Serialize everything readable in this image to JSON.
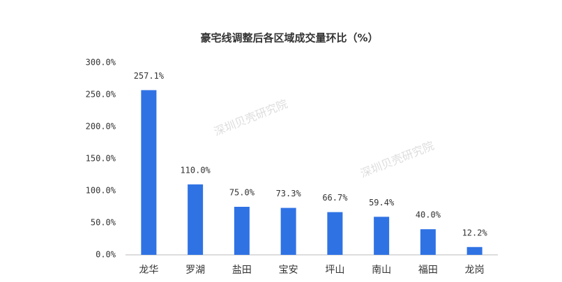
{
  "chart_data": {
    "type": "bar",
    "title": "豪宅线调整后各区域成交量环比（%）",
    "categories": [
      "龙华",
      "罗湖",
      "盐田",
      "宝安",
      "坪山",
      "南山",
      "福田",
      "龙岗"
    ],
    "values": [
      257.1,
      110.0,
      75.0,
      73.3,
      66.7,
      59.4,
      40.0,
      12.2
    ],
    "value_labels": [
      "257.1%",
      "110.0%",
      "75.0%",
      "73.3%",
      "66.7%",
      "59.4%",
      "40.0%",
      "12.2%"
    ],
    "color": "#2f72e4",
    "ylim": [
      0,
      300
    ],
    "yticks": [
      {
        "value": 0,
        "label": "0.0%"
      },
      {
        "value": 50,
        "label": "50.0%"
      },
      {
        "value": 100,
        "label": "100.0%"
      },
      {
        "value": 150,
        "label": "150.0%"
      },
      {
        "value": 200,
        "label": "200.0%"
      },
      {
        "value": 250,
        "label": "250.0%"
      },
      {
        "value": 300,
        "label": "300.0%"
      }
    ],
    "grid": false,
    "watermarks": [
      "深圳贝壳研究院",
      "深圳贝壳研究院"
    ]
  }
}
